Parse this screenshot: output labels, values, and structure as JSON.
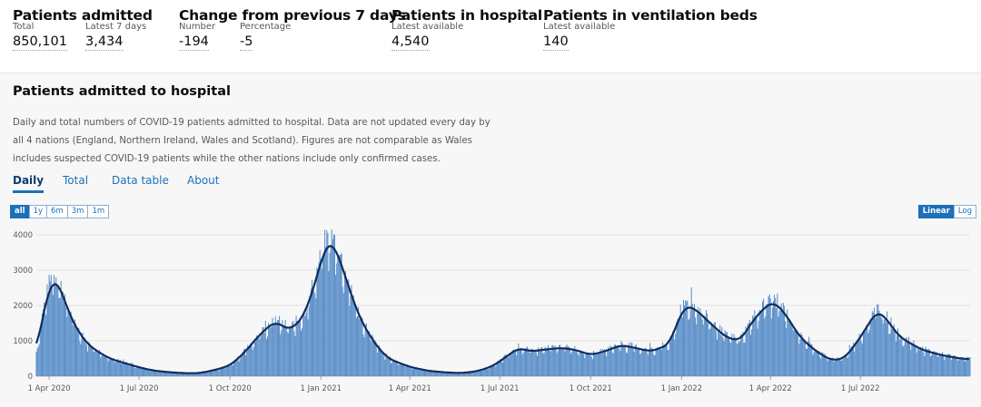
{
  "headline": {
    "admitted": {
      "title": "Patients admitted",
      "total_label": "Total",
      "total_value": "850,101",
      "week_label": "Latest 7 days",
      "week_value": "3,434"
    },
    "change": {
      "title": "Change from previous 7 days",
      "number_label": "Number",
      "number_value": "-194",
      "pct_label": "Percentage",
      "pct_value": "-5"
    },
    "hospital": {
      "title": "Patients in hospital",
      "label": "Latest available",
      "value": "4,540"
    },
    "ventilation": {
      "title": "Patients in ventilation beds",
      "label": "Latest available",
      "value": "140"
    }
  },
  "card": {
    "title": "Patients admitted to hospital",
    "description": "Daily and total numbers of COVID-19 patients admitted to hospital. Data are not updated every day by all 4 nations (England, Northern Ireland, Wales and Scotland). Figures are not comparable as Wales includes suspected COVID-19 patients while the other nations include only confirmed cases.",
    "tabs": [
      "Daily",
      "Total",
      "Data table",
      "About"
    ],
    "active_tab": "Daily",
    "ranges": [
      "all",
      "1y",
      "6m",
      "3m",
      "1m"
    ],
    "active_range": "all",
    "scales": [
      "Linear",
      "Log"
    ],
    "active_scale": "Linear"
  },
  "colors": {
    "bar": "#5b8fc9",
    "line": "#102d5c",
    "accent": "#1d70b8",
    "grid": "#e2e2e2"
  },
  "chart_data": {
    "type": "bar",
    "series": [
      {
        "kind": "bar",
        "description": "daily admissions"
      },
      {
        "kind": "line",
        "description": "7-day rolling average"
      }
    ],
    "x_start": "2020-03-19",
    "x_end": "2022-10-20",
    "x_ticks": [
      "1 Apr 2020",
      "1 Jul 2020",
      "1 Oct 2020",
      "1 Jan 2021",
      "1 Apr 2021",
      "1 Jul 2021",
      "1 Oct 2021",
      "1 Jan 2022",
      "1 Apr 2022",
      "1 Jul 2022"
    ],
    "y_ticks": [
      "0",
      "1000",
      "2000",
      "3000",
      "4000"
    ],
    "ylim": [
      0,
      4000
    ],
    "grid": true,
    "rolling_average_points": [
      [
        "2020-03-19",
        650
      ],
      [
        "2020-03-26",
        1800
      ],
      [
        "2020-04-02",
        2600
      ],
      [
        "2020-04-08",
        2750
      ],
      [
        "2020-04-15",
        2300
      ],
      [
        "2020-04-22",
        1700
      ],
      [
        "2020-05-01",
        1250
      ],
      [
        "2020-05-10",
        900
      ],
      [
        "2020-05-20",
        700
      ],
      [
        "2020-06-01",
        500
      ],
      [
        "2020-06-15",
        380
      ],
      [
        "2020-07-01",
        250
      ],
      [
        "2020-07-15",
        160
      ],
      [
        "2020-08-01",
        110
      ],
      [
        "2020-08-20",
        80
      ],
      [
        "2020-09-01",
        90
      ],
      [
        "2020-09-15",
        170
      ],
      [
        "2020-10-01",
        300
      ],
      [
        "2020-10-15",
        650
      ],
      [
        "2020-11-01",
        1200
      ],
      [
        "2020-11-15",
        1550
      ],
      [
        "2020-12-01",
        1300
      ],
      [
        "2020-12-15",
        1700
      ],
      [
        "2020-12-28",
        2800
      ],
      [
        "2021-01-05",
        3650
      ],
      [
        "2021-01-11",
        3800
      ],
      [
        "2021-01-18",
        3500
      ],
      [
        "2021-01-28",
        2600
      ],
      [
        "2021-02-10",
        1600
      ],
      [
        "2021-02-25",
        900
      ],
      [
        "2021-03-10",
        500
      ],
      [
        "2021-04-01",
        260
      ],
      [
        "2021-04-20",
        150
      ],
      [
        "2021-05-10",
        100
      ],
      [
        "2021-05-25",
        90
      ],
      [
        "2021-06-10",
        150
      ],
      [
        "2021-06-25",
        300
      ],
      [
        "2021-07-10",
        600
      ],
      [
        "2021-07-20",
        800
      ],
      [
        "2021-08-01",
        700
      ],
      [
        "2021-08-15",
        750
      ],
      [
        "2021-09-01",
        800
      ],
      [
        "2021-09-15",
        750
      ],
      [
        "2021-10-01",
        600
      ],
      [
        "2021-10-15",
        700
      ],
      [
        "2021-11-01",
        880
      ],
      [
        "2021-11-15",
        800
      ],
      [
        "2021-12-01",
        700
      ],
      [
        "2021-12-20",
        900
      ],
      [
        "2021-12-30",
        1700
      ],
      [
        "2022-01-05",
        2000
      ],
      [
        "2022-01-15",
        1900
      ],
      [
        "2022-01-30",
        1500
      ],
      [
        "2022-02-15",
        1100
      ],
      [
        "2022-03-01",
        1000
      ],
      [
        "2022-03-15",
        1600
      ],
      [
        "2022-03-28",
        2000
      ],
      [
        "2022-04-05",
        2100
      ],
      [
        "2022-04-15",
        1800
      ],
      [
        "2022-05-01",
        1100
      ],
      [
        "2022-05-15",
        750
      ],
      [
        "2022-06-01",
        450
      ],
      [
        "2022-06-15",
        500
      ],
      [
        "2022-07-01",
        1100
      ],
      [
        "2022-07-12",
        1600
      ],
      [
        "2022-07-18",
        1850
      ],
      [
        "2022-07-25",
        1700
      ],
      [
        "2022-08-10",
        1100
      ],
      [
        "2022-09-01",
        750
      ],
      [
        "2022-09-20",
        600
      ],
      [
        "2022-10-10",
        500
      ],
      [
        "2022-10-20",
        480
      ]
    ]
  }
}
